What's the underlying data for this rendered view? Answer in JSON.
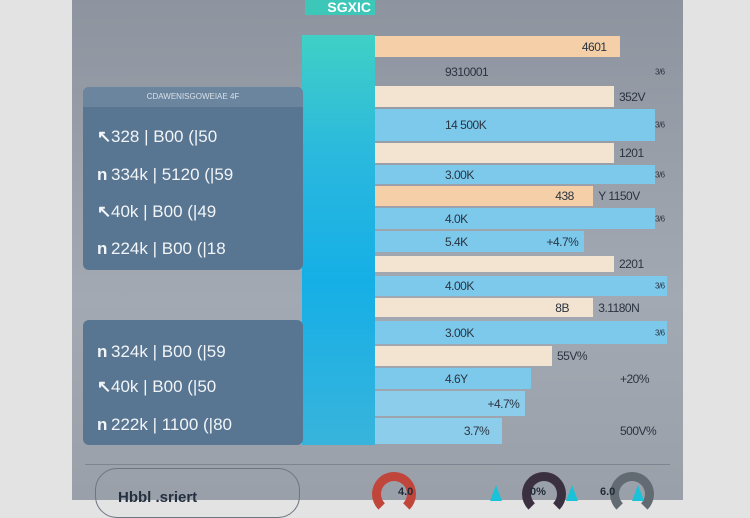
{
  "title": "SGXIC",
  "left_cards": [
    {
      "header": "CDAWENISGOWEIAE 4F",
      "rows": [
        {
          "icon": "arrow",
          "text": "328 | B00 (|50"
        },
        {
          "icon": "n",
          "text": "334k | 5120 (|59"
        },
        {
          "icon": "arrow",
          "text": "40k | B00 (|49"
        },
        {
          "icon": "n",
          "text": "224k | B00 (|18"
        }
      ]
    },
    {
      "header": "",
      "rows": [
        {
          "icon": "n",
          "text": "324k | B00 (|59"
        },
        {
          "icon": "arrow",
          "text": "40k | B00 (|50"
        },
        {
          "icon": "n",
          "text": "222k | 1100 (|80"
        }
      ]
    }
  ],
  "bars": [
    {
      "value": 0.83,
      "color": "#f5cfa8",
      "inside": "4601",
      "outside": "",
      "side": ""
    },
    {
      "value": 0,
      "color": "#f5cfa8",
      "inside": "",
      "center": "9310001",
      "side": "3/6"
    },
    {
      "value": 0.81,
      "color": "#f2e4d0",
      "outside": "352V",
      "side": ""
    },
    {
      "value": 0.95,
      "color": "#7cc9ec",
      "center": "14 500K",
      "side": "3/6"
    },
    {
      "value": 0.81,
      "color": "#f2e4d0",
      "outside": "1201",
      "side": ""
    },
    {
      "value": 0.95,
      "color": "#7cc9ec",
      "center": "3.00K",
      "side": "3/6"
    },
    {
      "value": 0.74,
      "color": "#f5cfa8",
      "inside": "438",
      "outside": "Y 1150V",
      "side": ""
    },
    {
      "value": 0.95,
      "color": "#7cc9ec",
      "center": "4.0K",
      "side": "3/6"
    },
    {
      "value": 0.71,
      "color": "#7cc9ec",
      "center": "5.4K",
      "inside": "+4.7%",
      "side": ""
    },
    {
      "value": 0.81,
      "color": "#f2e4d0",
      "outside": "2201",
      "side": ""
    },
    {
      "value": 0.99,
      "color": "#7cc9ec",
      "center": "4.00K",
      "side": "3/6"
    },
    {
      "value": 0.74,
      "color": "#f2e4d0",
      "inside": "8B",
      "outside": "3.1180N",
      "side": ""
    },
    {
      "value": 0.99,
      "color": "#7cc9ec",
      "center": "3.00K",
      "side": "3/6"
    },
    {
      "value": 0.6,
      "color": "#f2e4d0",
      "outside": "55V%",
      "side": ""
    },
    {
      "value": 0.53,
      "color": "#7cc9ec",
      "center": "4.6Y",
      "far": "+20%",
      "side": ""
    },
    {
      "value": 0.51,
      "color": "#8ccdec",
      "inside": "+4.7%",
      "side": ""
    },
    {
      "value": 0.43,
      "color": "#8ccdec",
      "inside": "3.7%",
      "far": "500V%",
      "side": ""
    }
  ],
  "footer": {
    "pill": "Hbbl .sriert",
    "gauges": [
      {
        "color": "#c0453a",
        "value": "4.0"
      },
      {
        "color": "#3a3040",
        "value": "0%"
      },
      {
        "color": "#626a72",
        "value": "6.0"
      }
    ]
  }
}
